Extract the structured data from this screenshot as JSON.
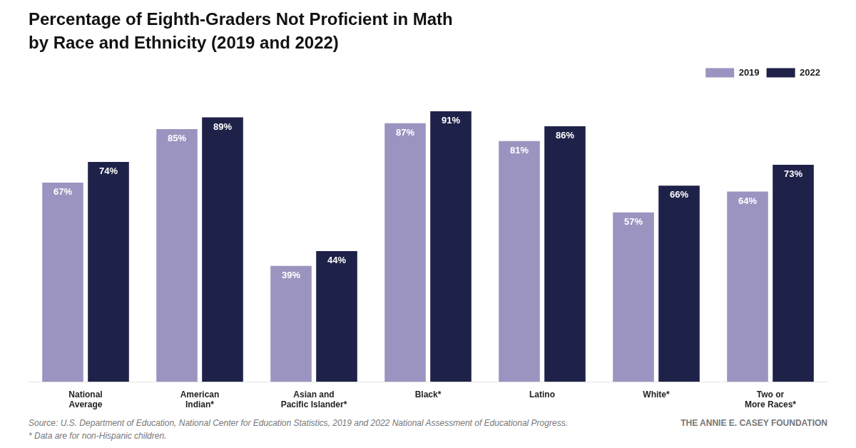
{
  "chart_data": {
    "type": "bar",
    "title": "Percentage of Eighth-Graders Not Proficient in Math",
    "subtitle": "by Race and Ethnicity (2019 and 2022)",
    "categories": [
      "National\nAverage",
      "American\nIndian*",
      "Asian and\nPacific Islander*",
      "Black*",
      "Latino",
      "White*",
      "Two or\nMore Races*"
    ],
    "series": [
      {
        "name": "2019",
        "color": "#9b94c0",
        "values": [
          67,
          85,
          39,
          87,
          81,
          57,
          64
        ],
        "value_labels": [
          "67%",
          "85%",
          "39%",
          "87%",
          "81%",
          "57%",
          "64%"
        ]
      },
      {
        "name": "2022",
        "color": "#1e2148",
        "values": [
          74,
          89,
          44,
          91,
          86,
          66,
          73
        ],
        "value_labels": [
          "74%",
          "89%",
          "44%",
          "91%",
          "86%",
          "66%",
          "73%"
        ]
      }
    ],
    "ylim": [
      0,
      100
    ],
    "grid": false,
    "legend": "upper right",
    "data_labels": true,
    "tick_labels": "x",
    "annotations": [
      "Source: U.S. Department of Education, National Center for Education Statistics, 2019 and 2022 National Assessment of Educational Progress.",
      "THE ANNIE E. CASEY FOUNDATION",
      "* Data are for non-Hispanic children."
    ]
  }
}
